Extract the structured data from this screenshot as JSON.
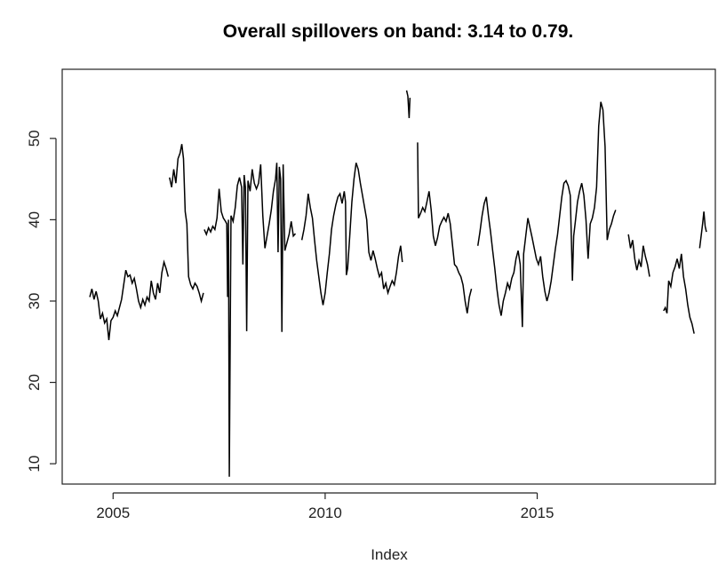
{
  "chart_data": {
    "type": "line",
    "title": "Overall spillovers on band: 3.14 to 0.79.",
    "xlabel": "Index",
    "ylabel": "",
    "xlim": [
      2003.8,
      2019.2
    ],
    "ylim": [
      7.5,
      58.5
    ],
    "x_ticks": [
      2005,
      2010,
      2015
    ],
    "x_tick_labels": [
      "2005",
      "2010",
      "2015"
    ],
    "y_ticks": [
      10,
      20,
      30,
      40,
      50
    ],
    "y_tick_labels": [
      "10",
      "20",
      "30",
      "40",
      "50"
    ],
    "grid": false,
    "legend": "none",
    "line_color": "#000000",
    "series": [
      {
        "points": [
          [
            2004.45,
            30.5
          ],
          [
            2004.5,
            31.5
          ],
          [
            2004.55,
            30.2
          ],
          [
            2004.6,
            31.2
          ],
          [
            2004.65,
            30.0
          ],
          [
            2004.7,
            27.8
          ],
          [
            2004.75,
            28.5
          ],
          [
            2004.8,
            27.3
          ],
          [
            2004.85,
            27.8
          ],
          [
            2004.9,
            25.2
          ],
          [
            2004.95,
            27.6
          ],
          [
            2005.0,
            28.0
          ],
          [
            2005.05,
            28.8
          ],
          [
            2005.1,
            28.2
          ],
          [
            2005.15,
            29.2
          ],
          [
            2005.2,
            30.2
          ],
          [
            2005.25,
            32.0
          ],
          [
            2005.3,
            33.8
          ],
          [
            2005.35,
            33.0
          ],
          [
            2005.4,
            33.2
          ],
          [
            2005.45,
            32.2
          ],
          [
            2005.5,
            32.8
          ],
          [
            2005.55,
            31.5
          ],
          [
            2005.6,
            30.0
          ],
          [
            2005.65,
            29.2
          ],
          [
            2005.7,
            30.2
          ],
          [
            2005.75,
            29.5
          ],
          [
            2005.8,
            30.5
          ],
          [
            2005.85,
            30.0
          ],
          [
            2005.9,
            32.5
          ],
          [
            2005.95,
            31.0
          ],
          [
            2006.0,
            30.2
          ],
          [
            2006.05,
            32.2
          ],
          [
            2006.1,
            31.0
          ],
          [
            2006.15,
            33.5
          ],
          [
            2006.2,
            34.8
          ],
          [
            2006.25,
            34.0
          ],
          [
            2006.3,
            33.0
          ],
          [
            2006.33,
            45.2
          ],
          [
            2006.38,
            44.0
          ],
          [
            2006.43,
            46.2
          ],
          [
            2006.48,
            44.5
          ],
          [
            2006.53,
            47.5
          ],
          [
            2006.58,
            48.2
          ],
          [
            2006.62,
            49.3
          ],
          [
            2006.66,
            47.5
          ],
          [
            2006.7,
            41.0
          ],
          [
            2006.74,
            39.5
          ],
          [
            2006.78,
            33.0
          ],
          [
            2006.83,
            32.0
          ],
          [
            2006.88,
            31.5
          ],
          [
            2006.93,
            32.2
          ],
          [
            2006.98,
            31.8
          ],
          [
            2007.03,
            31.0
          ],
          [
            2007.08,
            30.0
          ],
          [
            2007.13,
            31.0
          ],
          [
            2007.15,
            38.8
          ],
          [
            2007.2,
            38.2
          ],
          [
            2007.25,
            39.0
          ],
          [
            2007.3,
            38.5
          ],
          [
            2007.35,
            39.2
          ],
          [
            2007.4,
            38.8
          ],
          [
            2007.45,
            40.2
          ],
          [
            2007.5,
            43.8
          ],
          [
            2007.55,
            41.0
          ],
          [
            2007.6,
            40.2
          ],
          [
            2007.65,
            39.8
          ],
          [
            2007.68,
            39.5
          ],
          [
            2007.7,
            30.5
          ],
          [
            2007.72,
            40.0
          ],
          [
            2007.74,
            8.4
          ],
          [
            2007.78,
            40.5
          ],
          [
            2007.83,
            39.8
          ],
          [
            2007.88,
            41.5
          ],
          [
            2007.93,
            44.2
          ],
          [
            2007.98,
            45.2
          ],
          [
            2008.03,
            44.0
          ],
          [
            2008.06,
            34.5
          ],
          [
            2008.09,
            45.5
          ],
          [
            2008.12,
            44.0
          ],
          [
            2008.15,
            26.3
          ],
          [
            2008.18,
            44.8
          ],
          [
            2008.23,
            43.5
          ],
          [
            2008.28,
            46.2
          ],
          [
            2008.33,
            44.5
          ],
          [
            2008.38,
            43.8
          ],
          [
            2008.43,
            44.5
          ],
          [
            2008.48,
            46.8
          ],
          [
            2008.53,
            40.5
          ],
          [
            2008.58,
            36.5
          ],
          [
            2008.63,
            38.0
          ],
          [
            2008.68,
            39.5
          ],
          [
            2008.73,
            41.2
          ],
          [
            2008.78,
            43.5
          ],
          [
            2008.83,
            45.0
          ],
          [
            2008.86,
            47.0
          ],
          [
            2008.89,
            36.0
          ],
          [
            2008.92,
            46.5
          ],
          [
            2008.95,
            45.0
          ],
          [
            2008.98,
            26.2
          ],
          [
            2009.01,
            46.8
          ],
          [
            2009.05,
            36.2
          ],
          [
            2009.1,
            37.2
          ],
          [
            2009.15,
            38.2
          ],
          [
            2009.2,
            39.8
          ],
          [
            2009.25,
            38.0
          ],
          [
            2009.3,
            38.3
          ],
          [
            2009.45,
            37.5
          ],
          [
            2009.5,
            38.8
          ],
          [
            2009.55,
            40.5
          ],
          [
            2009.6,
            43.2
          ],
          [
            2009.65,
            41.5
          ],
          [
            2009.7,
            40.2
          ],
          [
            2009.75,
            37.5
          ],
          [
            2009.8,
            35.0
          ],
          [
            2009.85,
            33.0
          ],
          [
            2009.9,
            31.0
          ],
          [
            2009.95,
            29.5
          ],
          [
            2010.0,
            31.0
          ],
          [
            2010.05,
            33.5
          ],
          [
            2010.1,
            35.8
          ],
          [
            2010.15,
            38.8
          ],
          [
            2010.2,
            40.5
          ],
          [
            2010.25,
            41.8
          ],
          [
            2010.3,
            42.8
          ],
          [
            2010.35,
            43.2
          ],
          [
            2010.4,
            42.0
          ],
          [
            2010.45,
            43.5
          ],
          [
            2010.48,
            42.2
          ],
          [
            2010.5,
            33.2
          ],
          [
            2010.53,
            34.0
          ],
          [
            2010.58,
            38.0
          ],
          [
            2010.63,
            42.2
          ],
          [
            2010.68,
            45.0
          ],
          [
            2010.73,
            47.0
          ],
          [
            2010.78,
            46.2
          ],
          [
            2010.83,
            44.5
          ],
          [
            2010.88,
            43.0
          ],
          [
            2010.93,
            41.5
          ],
          [
            2010.98,
            40.0
          ],
          [
            2011.03,
            36.0
          ],
          [
            2011.08,
            35.0
          ],
          [
            2011.13,
            36.2
          ],
          [
            2011.18,
            35.2
          ],
          [
            2011.23,
            34.0
          ],
          [
            2011.28,
            33.0
          ],
          [
            2011.33,
            33.5
          ],
          [
            2011.38,
            31.5
          ],
          [
            2011.43,
            32.2
          ],
          [
            2011.48,
            31.0
          ],
          [
            2011.53,
            31.8
          ],
          [
            2011.58,
            32.5
          ],
          [
            2011.63,
            32.0
          ],
          [
            2011.68,
            33.5
          ],
          [
            2011.73,
            35.5
          ],
          [
            2011.78,
            36.8
          ],
          [
            2011.82,
            34.8
          ],
          [
            2011.92,
            55.9
          ],
          [
            2011.95,
            55.2
          ],
          [
            2011.98,
            52.5
          ],
          [
            2012.0,
            55.0
          ],
          [
            2012.18,
            49.5
          ],
          [
            2012.2,
            40.2
          ],
          [
            2012.25,
            40.8
          ],
          [
            2012.3,
            41.5
          ],
          [
            2012.35,
            41.0
          ],
          [
            2012.4,
            42.2
          ],
          [
            2012.45,
            43.5
          ],
          [
            2012.5,
            41.2
          ],
          [
            2012.55,
            38.0
          ],
          [
            2012.6,
            36.8
          ],
          [
            2012.65,
            37.8
          ],
          [
            2012.7,
            39.2
          ],
          [
            2012.75,
            39.8
          ],
          [
            2012.8,
            40.3
          ],
          [
            2012.85,
            39.8
          ],
          [
            2012.9,
            40.8
          ],
          [
            2012.95,
            39.5
          ],
          [
            2013.0,
            37.0
          ],
          [
            2013.05,
            34.5
          ],
          [
            2013.1,
            34.2
          ],
          [
            2013.15,
            33.5
          ],
          [
            2013.2,
            33.0
          ],
          [
            2013.25,
            32.0
          ],
          [
            2013.3,
            30.0
          ],
          [
            2013.35,
            28.5
          ],
          [
            2013.4,
            30.5
          ],
          [
            2013.45,
            31.5
          ],
          [
            2013.6,
            36.8
          ],
          [
            2013.65,
            38.5
          ],
          [
            2013.7,
            40.5
          ],
          [
            2013.75,
            42.0
          ],
          [
            2013.8,
            42.8
          ],
          [
            2013.85,
            40.5
          ],
          [
            2013.9,
            38.5
          ],
          [
            2013.95,
            36.2
          ],
          [
            2014.0,
            34.0
          ],
          [
            2014.05,
            31.5
          ],
          [
            2014.1,
            29.5
          ],
          [
            2014.15,
            28.2
          ],
          [
            2014.2,
            30.0
          ],
          [
            2014.25,
            31.0
          ],
          [
            2014.3,
            32.2
          ],
          [
            2014.35,
            31.5
          ],
          [
            2014.4,
            32.8
          ],
          [
            2014.45,
            33.5
          ],
          [
            2014.5,
            35.2
          ],
          [
            2014.55,
            36.2
          ],
          [
            2014.6,
            34.5
          ],
          [
            2014.65,
            26.8
          ],
          [
            2014.68,
            35.8
          ],
          [
            2014.73,
            38.0
          ],
          [
            2014.78,
            40.2
          ],
          [
            2014.83,
            39.0
          ],
          [
            2014.88,
            37.8
          ],
          [
            2014.93,
            36.5
          ],
          [
            2014.98,
            35.2
          ],
          [
            2015.03,
            34.5
          ],
          [
            2015.08,
            35.5
          ],
          [
            2015.13,
            33.0
          ],
          [
            2015.18,
            31.2
          ],
          [
            2015.23,
            30.0
          ],
          [
            2015.28,
            31.0
          ],
          [
            2015.33,
            32.5
          ],
          [
            2015.38,
            34.5
          ],
          [
            2015.43,
            36.5
          ],
          [
            2015.48,
            38.2
          ],
          [
            2015.53,
            40.5
          ],
          [
            2015.58,
            42.8
          ],
          [
            2015.63,
            44.5
          ],
          [
            2015.68,
            44.8
          ],
          [
            2015.73,
            44.2
          ],
          [
            2015.78,
            43.0
          ],
          [
            2015.83,
            32.5
          ],
          [
            2015.86,
            38.0
          ],
          [
            2015.9,
            39.8
          ],
          [
            2015.95,
            42.2
          ],
          [
            2016.0,
            43.5
          ],
          [
            2016.05,
            44.5
          ],
          [
            2016.1,
            43.0
          ],
          [
            2016.15,
            40.0
          ],
          [
            2016.2,
            35.2
          ],
          [
            2016.25,
            39.5
          ],
          [
            2016.3,
            40.2
          ],
          [
            2016.35,
            41.5
          ],
          [
            2016.4,
            44.0
          ],
          [
            2016.45,
            51.5
          ],
          [
            2016.5,
            54.5
          ],
          [
            2016.55,
            53.5
          ],
          [
            2016.6,
            49.0
          ],
          [
            2016.65,
            37.5
          ],
          [
            2016.7,
            38.8
          ],
          [
            2016.75,
            39.5
          ],
          [
            2016.8,
            40.5
          ],
          [
            2016.85,
            41.2
          ],
          [
            2017.15,
            38.2
          ],
          [
            2017.2,
            36.5
          ],
          [
            2017.25,
            37.5
          ],
          [
            2017.3,
            35.2
          ],
          [
            2017.35,
            33.8
          ],
          [
            2017.4,
            35.0
          ],
          [
            2017.45,
            34.2
          ],
          [
            2017.5,
            36.8
          ],
          [
            2017.55,
            35.5
          ],
          [
            2017.6,
            34.5
          ],
          [
            2017.65,
            33.0
          ],
          [
            2017.98,
            28.8
          ],
          [
            2018.02,
            29.2
          ],
          [
            2018.06,
            28.5
          ],
          [
            2018.1,
            32.5
          ],
          [
            2018.15,
            31.8
          ],
          [
            2018.2,
            33.5
          ],
          [
            2018.25,
            34.2
          ],
          [
            2018.3,
            35.2
          ],
          [
            2018.35,
            34.0
          ],
          [
            2018.4,
            35.8
          ],
          [
            2018.45,
            33.0
          ],
          [
            2018.5,
            31.5
          ],
          [
            2018.55,
            29.5
          ],
          [
            2018.6,
            28.0
          ],
          [
            2018.65,
            27.2
          ],
          [
            2018.7,
            26.0
          ],
          [
            2018.83,
            36.5
          ],
          [
            2018.87,
            38.2
          ],
          [
            2018.9,
            39.5
          ],
          [
            2018.93,
            41.0
          ],
          [
            2018.96,
            39.2
          ],
          [
            2018.99,
            38.5
          ]
        ],
        "breaks_after_x": [
          2006.3,
          2007.13,
          2009.3,
          2011.82,
          2012.0,
          2013.45,
          2016.85,
          2017.65,
          2018.7
        ]
      }
    ]
  }
}
